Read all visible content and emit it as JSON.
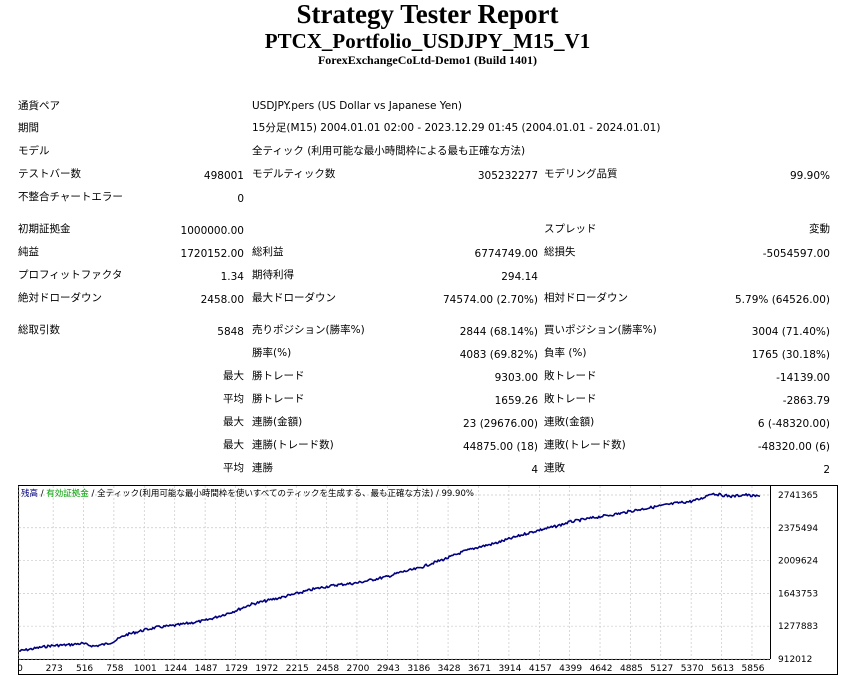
{
  "report": {
    "title": "Strategy Tester Report",
    "subtitle": "PTCX_Portfolio_USDJPY_M15_V1",
    "server": "ForexExchangeCoLtd-Demo1 (Build 1401)"
  },
  "rows": [
    {
      "cells": [
        {
          "text": "通貨ペア",
          "x": 18,
          "y": 100,
          "align": "left"
        },
        {
          "text": "USDJPY.pers (US Dollar vs Japanese Yen)",
          "x": 252,
          "y": 100,
          "align": "left"
        }
      ]
    },
    {
      "cells": [
        {
          "text": "期間",
          "x": 18,
          "y": 122,
          "align": "left"
        },
        {
          "text": "15分足(M15) 2004.01.01 02:00 - 2023.12.29 01:45 (2004.01.01 - 2024.01.01)",
          "x": 252,
          "y": 122,
          "align": "left"
        }
      ]
    },
    {
      "cells": [
        {
          "text": "モデル",
          "x": 18,
          "y": 145,
          "align": "left"
        },
        {
          "text": "全ティック (利用可能な最小時間枠による最も正確な方法)",
          "x": 252,
          "y": 145,
          "align": "left"
        }
      ]
    },
    {
      "cells": [
        {
          "text": "テストバー数",
          "x": 18,
          "y": 168,
          "align": "left"
        },
        {
          "text": "498001",
          "x": 244,
          "y": 170,
          "align": "right"
        },
        {
          "text": "モデルティック数",
          "x": 252,
          "y": 168,
          "align": "left"
        },
        {
          "text": "305232277",
          "x": 538,
          "y": 170,
          "align": "right"
        },
        {
          "text": "モデリング品質",
          "x": 544,
          "y": 168,
          "align": "left"
        },
        {
          "text": "99.90%",
          "x": 830,
          "y": 170,
          "align": "right"
        }
      ]
    },
    {
      "cells": [
        {
          "text": "不整合チャートエラー",
          "x": 18,
          "y": 191,
          "align": "left"
        },
        {
          "text": "0",
          "x": 244,
          "y": 193,
          "align": "right"
        }
      ]
    },
    {
      "cells": [
        {
          "text": "初期証拠金",
          "x": 18,
          "y": 223,
          "align": "left"
        },
        {
          "text": "1000000.00",
          "x": 244,
          "y": 225,
          "align": "right"
        },
        {
          "text": "スプレッド",
          "x": 544,
          "y": 223,
          "align": "left"
        },
        {
          "text": "変動",
          "x": 830,
          "y": 223,
          "align": "right"
        }
      ]
    },
    {
      "cells": [
        {
          "text": "純益",
          "x": 18,
          "y": 246,
          "align": "left"
        },
        {
          "text": "1720152.00",
          "x": 244,
          "y": 248,
          "align": "right"
        },
        {
          "text": "総利益",
          "x": 252,
          "y": 246,
          "align": "left"
        },
        {
          "text": "6774749.00",
          "x": 538,
          "y": 248,
          "align": "right"
        },
        {
          "text": "総損失",
          "x": 544,
          "y": 246,
          "align": "left"
        },
        {
          "text": "-5054597.00",
          "x": 830,
          "y": 248,
          "align": "right"
        }
      ]
    },
    {
      "cells": [
        {
          "text": "プロフィットファクタ",
          "x": 18,
          "y": 269,
          "align": "left"
        },
        {
          "text": "1.34",
          "x": 244,
          "y": 271,
          "align": "right"
        },
        {
          "text": "期待利得",
          "x": 252,
          "y": 269,
          "align": "left"
        },
        {
          "text": "294.14",
          "x": 538,
          "y": 271,
          "align": "right"
        }
      ]
    },
    {
      "cells": [
        {
          "text": "絶対ドローダウン",
          "x": 18,
          "y": 292,
          "align": "left"
        },
        {
          "text": "2458.00",
          "x": 244,
          "y": 294,
          "align": "right"
        },
        {
          "text": "最大ドローダウン",
          "x": 252,
          "y": 292,
          "align": "left"
        },
        {
          "text": "74574.00 (2.70%)",
          "x": 538,
          "y": 294,
          "align": "right"
        },
        {
          "text": "相対ドローダウン",
          "x": 544,
          "y": 292,
          "align": "left"
        },
        {
          "text": "5.79% (64526.00)",
          "x": 830,
          "y": 294,
          "align": "right"
        }
      ]
    },
    {
      "cells": [
        {
          "text": "総取引数",
          "x": 18,
          "y": 324,
          "align": "left"
        },
        {
          "text": "5848",
          "x": 244,
          "y": 326,
          "align": "right"
        },
        {
          "text": "売りポジション(勝率%)",
          "x": 252,
          "y": 324,
          "align": "left"
        },
        {
          "text": "2844 (68.14%)",
          "x": 538,
          "y": 326,
          "align": "right"
        },
        {
          "text": "買いポジション(勝率%)",
          "x": 544,
          "y": 324,
          "align": "left"
        },
        {
          "text": "3004 (71.40%)",
          "x": 830,
          "y": 326,
          "align": "right"
        }
      ]
    },
    {
      "cells": [
        {
          "text": "勝率(%)",
          "x": 252,
          "y": 347,
          "align": "left"
        },
        {
          "text": "4083 (69.82%)",
          "x": 538,
          "y": 349,
          "align": "right"
        },
        {
          "text": "負率 (%)",
          "x": 544,
          "y": 347,
          "align": "left"
        },
        {
          "text": "1765 (30.18%)",
          "x": 830,
          "y": 349,
          "align": "right"
        }
      ]
    },
    {
      "cells": [
        {
          "text": "最大",
          "x": 244,
          "y": 370,
          "align": "right"
        },
        {
          "text": "勝トレード",
          "x": 252,
          "y": 370,
          "align": "left"
        },
        {
          "text": "9303.00",
          "x": 538,
          "y": 372,
          "align": "right"
        },
        {
          "text": "敗トレード",
          "x": 544,
          "y": 370,
          "align": "left"
        },
        {
          "text": "-14139.00",
          "x": 830,
          "y": 372,
          "align": "right"
        }
      ]
    },
    {
      "cells": [
        {
          "text": "平均",
          "x": 244,
          "y": 393,
          "align": "right"
        },
        {
          "text": "勝トレード",
          "x": 252,
          "y": 393,
          "align": "left"
        },
        {
          "text": "1659.26",
          "x": 538,
          "y": 395,
          "align": "right"
        },
        {
          "text": "敗トレード",
          "x": 544,
          "y": 393,
          "align": "left"
        },
        {
          "text": "-2863.79",
          "x": 830,
          "y": 395,
          "align": "right"
        }
      ]
    },
    {
      "cells": [
        {
          "text": "最大",
          "x": 244,
          "y": 416,
          "align": "right"
        },
        {
          "text": "連勝(金額)",
          "x": 252,
          "y": 416,
          "align": "left"
        },
        {
          "text": "23 (29676.00)",
          "x": 538,
          "y": 418,
          "align": "right"
        },
        {
          "text": "連敗(金額)",
          "x": 544,
          "y": 416,
          "align": "left"
        },
        {
          "text": "6 (-48320.00)",
          "x": 830,
          "y": 418,
          "align": "right"
        }
      ]
    },
    {
      "cells": [
        {
          "text": "最大",
          "x": 244,
          "y": 439,
          "align": "right"
        },
        {
          "text": "連勝(トレード数)",
          "x": 252,
          "y": 439,
          "align": "left"
        },
        {
          "text": "44875.00 (18)",
          "x": 538,
          "y": 441,
          "align": "right"
        },
        {
          "text": "連敗(トレード数)",
          "x": 544,
          "y": 439,
          "align": "left"
        },
        {
          "text": "-48320.00 (6)",
          "x": 830,
          "y": 441,
          "align": "right"
        }
      ]
    },
    {
      "cells": [
        {
          "text": "平均",
          "x": 244,
          "y": 462,
          "align": "right"
        },
        {
          "text": "連勝",
          "x": 252,
          "y": 462,
          "align": "left"
        },
        {
          "text": "4",
          "x": 538,
          "y": 464,
          "align": "right"
        },
        {
          "text": "連敗",
          "x": 544,
          "y": 462,
          "align": "left"
        },
        {
          "text": "2",
          "x": 830,
          "y": 464,
          "align": "right"
        }
      ]
    }
  ],
  "chart_data": {
    "type": "line",
    "legend": [
      {
        "text": "残高",
        "color": "#000080"
      },
      {
        "text": " / ",
        "color": "#000000"
      },
      {
        "text": "有効証拠金",
        "color": "#00a000"
      },
      {
        "text": " / 全ティック(利用可能な最小時間枠を使いすべてのティックを生成する、最も正確な方法) / 99.90%",
        "color": "#000000"
      }
    ],
    "x_ticks": [
      0,
      273,
      516,
      758,
      1001,
      1244,
      1487,
      1729,
      1972,
      2215,
      2458,
      2700,
      2943,
      3186,
      3428,
      3671,
      3914,
      4157,
      4399,
      4642,
      4885,
      5127,
      5370,
      5613,
      5856
    ],
    "y_ticks": [
      912012,
      1277883,
      1643753,
      2009624,
      2375494,
      2741365
    ],
    "xlim": [
      0,
      6000
    ],
    "ylim": [
      912012,
      2841365
    ],
    "line_color": "#000080",
    "series": [
      {
        "x": [
          0,
          250,
          400,
          500,
          600,
          700,
          760,
          850,
          1000,
          1100,
          1244,
          1350,
          1487,
          1600,
          1729,
          1850,
          1972,
          2100,
          2215,
          2350,
          2458,
          2550,
          2700,
          2800,
          2943,
          3050,
          3186,
          3300,
          3428,
          3550,
          3671,
          3800,
          3914,
          4050,
          4157,
          4300,
          4399,
          4500,
          4642,
          4800,
          4885,
          5000,
          5127,
          5250,
          5370,
          5450,
          5530,
          5613,
          5700,
          5800,
          5856,
          5920
        ],
        "y": [
          1000000,
          1060000,
          1070000,
          1085000,
          1055000,
          1080000,
          1110000,
          1180000,
          1235000,
          1265000,
          1285000,
          1310000,
          1340000,
          1390000,
          1450000,
          1520000,
          1560000,
          1600000,
          1640000,
          1690000,
          1720000,
          1740000,
          1760000,
          1790000,
          1830000,
          1880000,
          1920000,
          1980000,
          2040000,
          2110000,
          2160000,
          2200000,
          2250000,
          2310000,
          2350000,
          2395000,
          2440000,
          2465000,
          2500000,
          2535000,
          2560000,
          2590000,
          2620000,
          2650000,
          2670000,
          2700000,
          2760000,
          2740000,
          2725000,
          2745000,
          2730000,
          2728000
        ]
      }
    ]
  }
}
